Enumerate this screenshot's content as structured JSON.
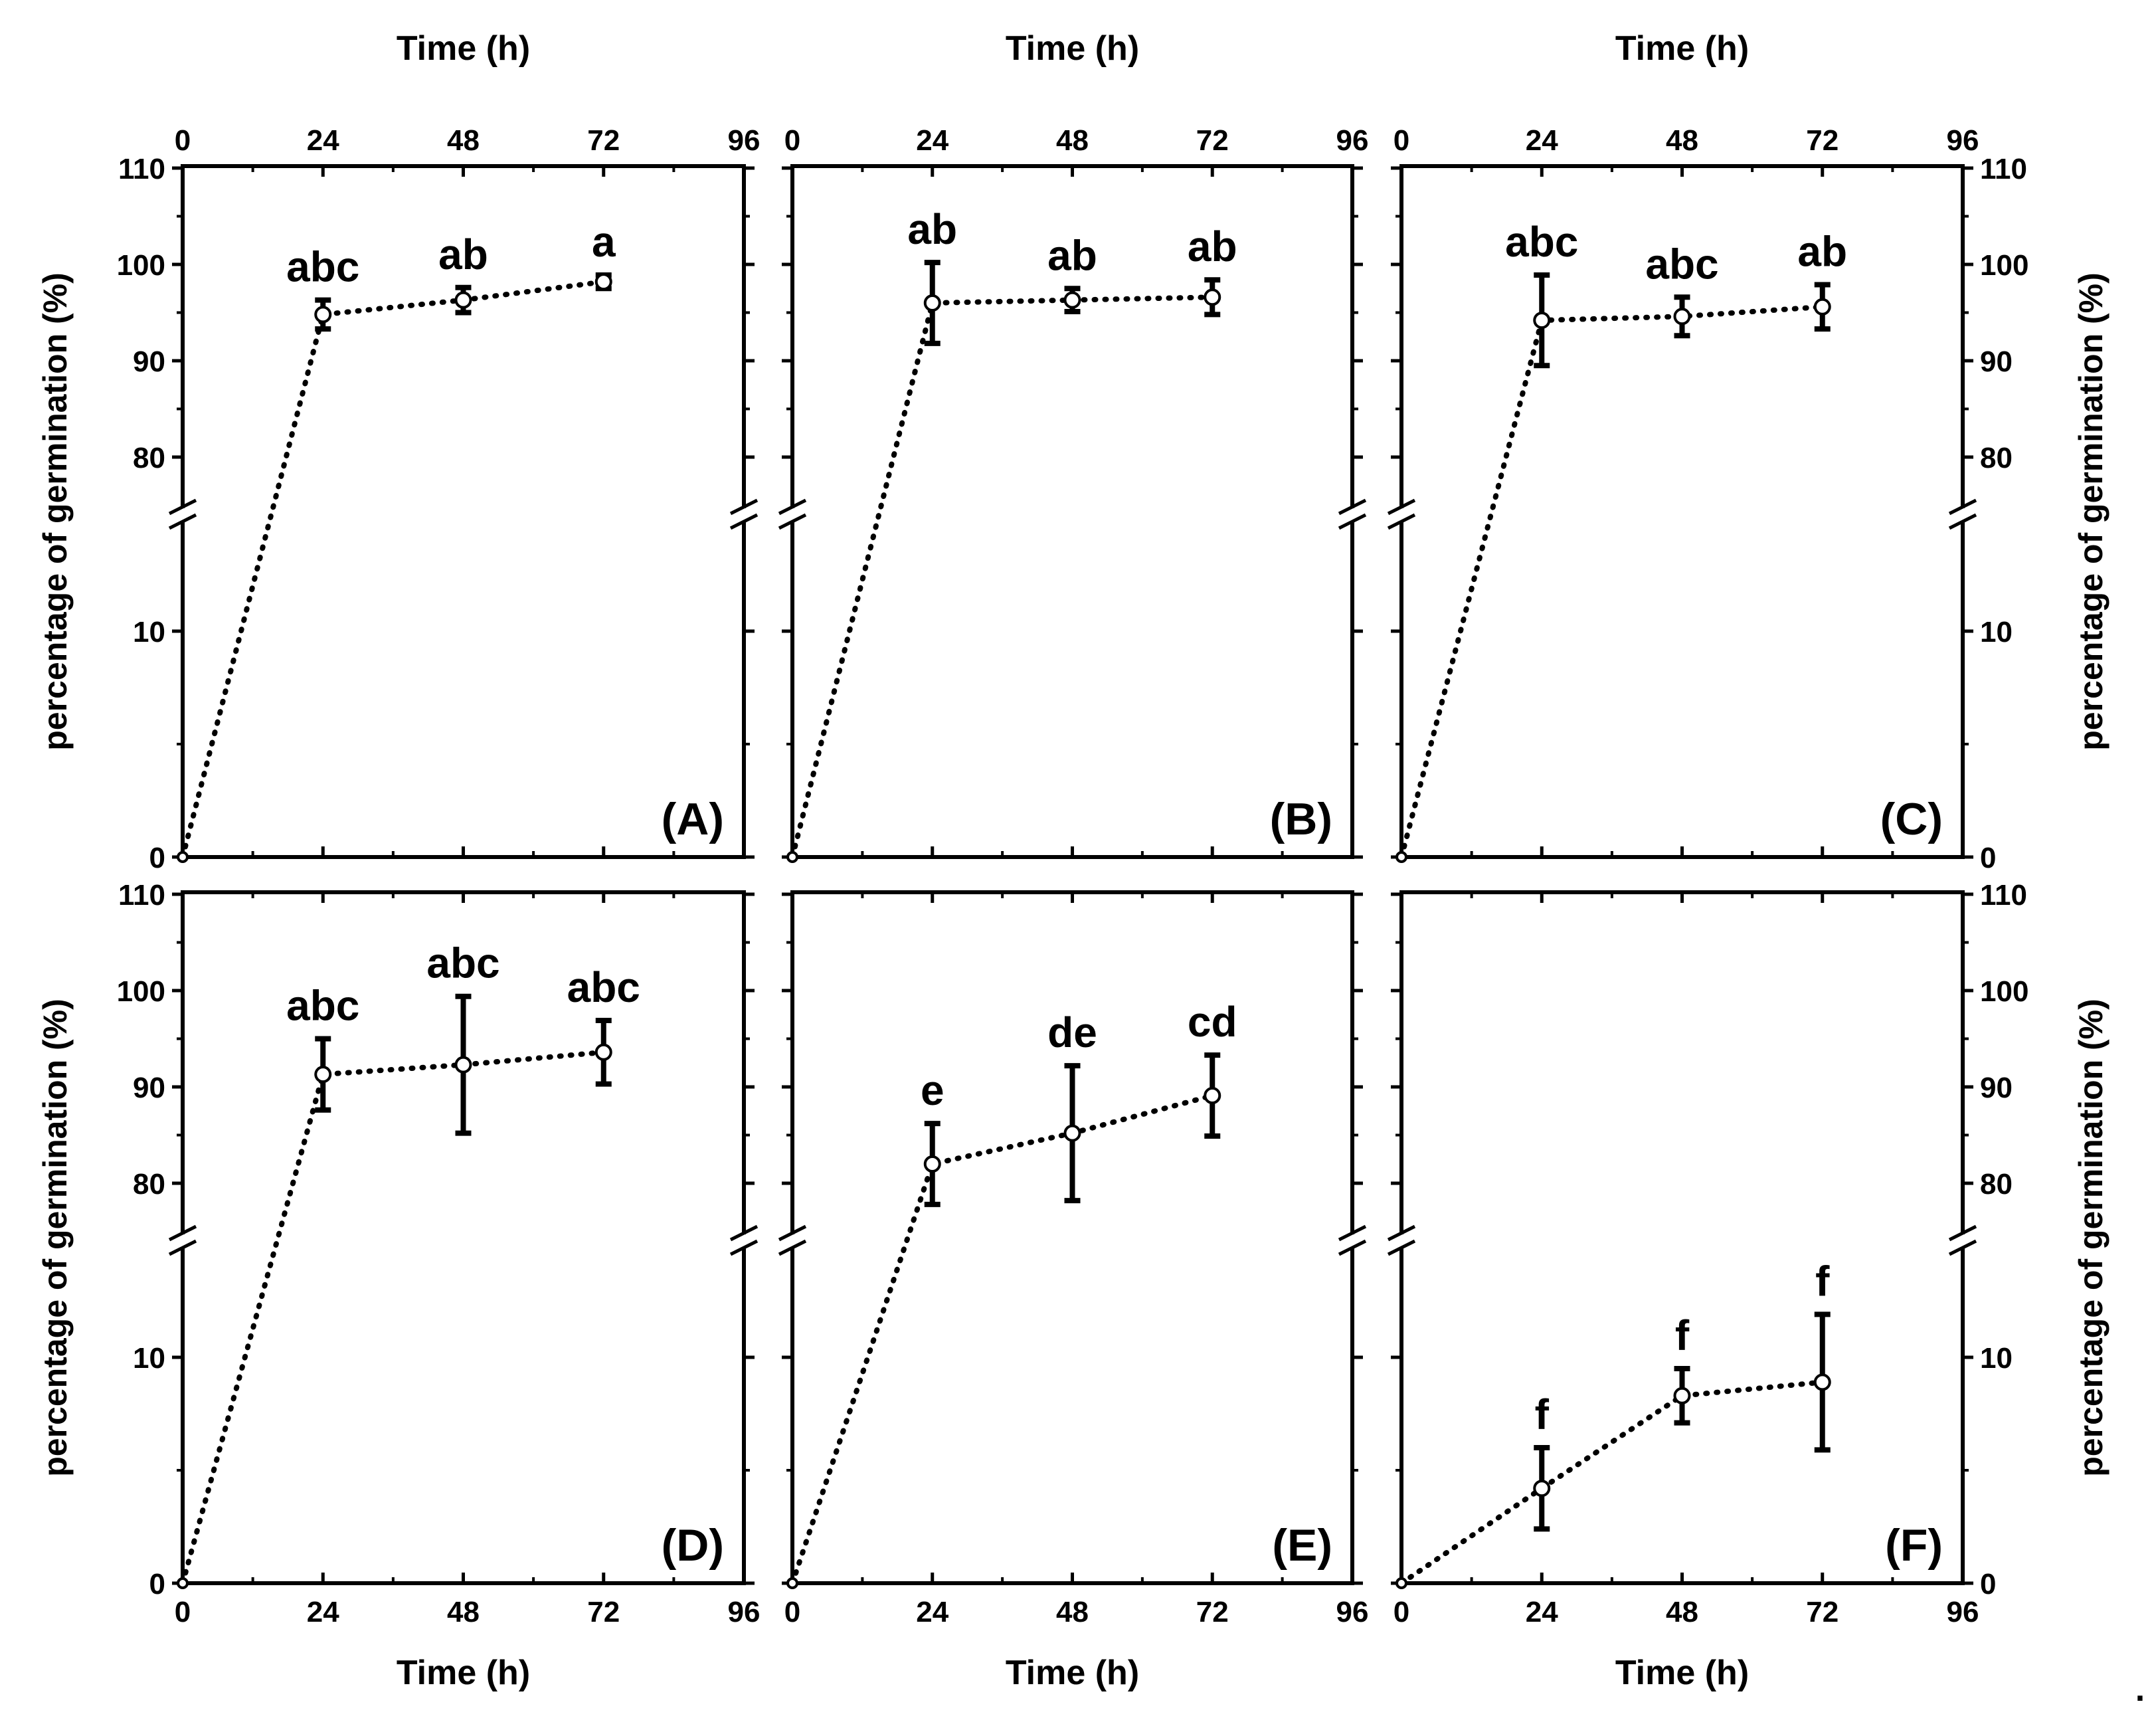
{
  "figure": {
    "trailing_mark": "."
  },
  "chart_data": [
    {
      "panel": "(A)",
      "type": "line",
      "x_top_label": "Time (h)",
      "x_bottom_label": "",
      "y_label_left": "percentage of germination (%)",
      "y_label_right": "",
      "x_ticks": [
        "0",
        "24",
        "48",
        "72",
        "96"
      ],
      "y_ticks": [
        "110",
        "100",
        "90",
        "80",
        "10",
        "0"
      ],
      "xlim": [
        0,
        96
      ],
      "ylim_lower": [
        0,
        15
      ],
      "ylim_upper": [
        75,
        110
      ],
      "axis_break": true,
      "x": [
        0,
        24,
        48,
        72
      ],
      "values": [
        0,
        94.8,
        96.3,
        98.2
      ],
      "errors": [
        0,
        1.5,
        1.3,
        0.7
      ],
      "significance": [
        "",
        "abc",
        "ab",
        "a"
      ]
    },
    {
      "panel": "(B)",
      "type": "line",
      "x_top_label": "Time (h)",
      "x_bottom_label": "",
      "y_label_left": "",
      "y_label_right": "",
      "x_ticks": [
        "0",
        "24",
        "48",
        "72",
        "96"
      ],
      "y_ticks": [],
      "xlim": [
        0,
        96
      ],
      "ylim_lower": [
        0,
        15
      ],
      "ylim_upper": [
        75,
        110
      ],
      "axis_break": true,
      "x": [
        0,
        24,
        48,
        72
      ],
      "values": [
        0,
        96.0,
        96.3,
        96.6
      ],
      "errors": [
        0,
        4.2,
        1.2,
        1.8
      ],
      "significance": [
        "",
        "ab",
        "ab",
        "ab"
      ]
    },
    {
      "panel": "(C)",
      "type": "line",
      "x_top_label": "Time (h)",
      "x_bottom_label": "",
      "y_label_left": "",
      "y_label_right": "percentage of germination (%)",
      "x_ticks": [
        "0",
        "24",
        "48",
        "72",
        "96"
      ],
      "y_ticks": [
        "110",
        "100",
        "90",
        "80",
        "10",
        "0"
      ],
      "xlim": [
        0,
        96
      ],
      "ylim_lower": [
        0,
        15
      ],
      "ylim_upper": [
        75,
        110
      ],
      "axis_break": true,
      "x": [
        0,
        24,
        48,
        72
      ],
      "values": [
        0,
        94.2,
        94.6,
        95.6
      ],
      "errors": [
        0,
        4.7,
        2.0,
        2.3
      ],
      "significance": [
        "",
        "abc",
        "abc",
        "ab"
      ]
    },
    {
      "panel": "(D)",
      "type": "line",
      "x_top_label": "",
      "x_bottom_label": "Time (h)",
      "y_label_left": "percentage of germination (%)",
      "y_label_right": "",
      "x_ticks": [
        "0",
        "24",
        "48",
        "72",
        "96"
      ],
      "y_ticks": [
        "110",
        "100",
        "90",
        "80",
        "10",
        "0"
      ],
      "xlim": [
        0,
        96
      ],
      "ylim_lower": [
        0,
        15
      ],
      "ylim_upper": [
        75,
        110
      ],
      "axis_break": true,
      "x": [
        0,
        24,
        48,
        72
      ],
      "values": [
        0,
        91.3,
        92.3,
        93.6
      ],
      "errors": [
        0,
        3.7,
        7.1,
        3.3
      ],
      "significance": [
        "",
        "abc",
        "abc",
        "abc"
      ]
    },
    {
      "panel": "(E)",
      "type": "line",
      "x_top_label": "",
      "x_bottom_label": "Time (h)",
      "y_label_left": "",
      "y_label_right": "",
      "x_ticks": [
        "0",
        "24",
        "48",
        "72",
        "96"
      ],
      "y_ticks": [],
      "xlim": [
        0,
        96
      ],
      "ylim_lower": [
        0,
        15
      ],
      "ylim_upper": [
        75,
        110
      ],
      "axis_break": true,
      "x": [
        0,
        24,
        48,
        72
      ],
      "values": [
        0,
        82.0,
        85.2,
        89.1
      ],
      "errors": [
        0,
        4.2,
        7.0,
        4.2
      ],
      "significance": [
        "",
        "e",
        "de",
        "cd"
      ]
    },
    {
      "panel": "(F)",
      "type": "line",
      "x_top_label": "",
      "x_bottom_label": "Time (h)",
      "y_label_left": "",
      "y_label_right": "percentage of germination (%)",
      "x_ticks": [
        "0",
        "24",
        "48",
        "72",
        "96"
      ],
      "y_ticks": [
        "110",
        "100",
        "90",
        "80",
        "10",
        "0"
      ],
      "xlim": [
        0,
        96
      ],
      "ylim_lower": [
        0,
        15
      ],
      "ylim_upper": [
        75,
        110
      ],
      "axis_break": true,
      "x": [
        0,
        24,
        48,
        72
      ],
      "values": [
        0,
        4.2,
        8.3,
        8.9
      ],
      "errors": [
        0,
        1.8,
        1.2,
        3.0
      ],
      "significance": [
        "",
        "f",
        "f",
        "f"
      ]
    }
  ]
}
